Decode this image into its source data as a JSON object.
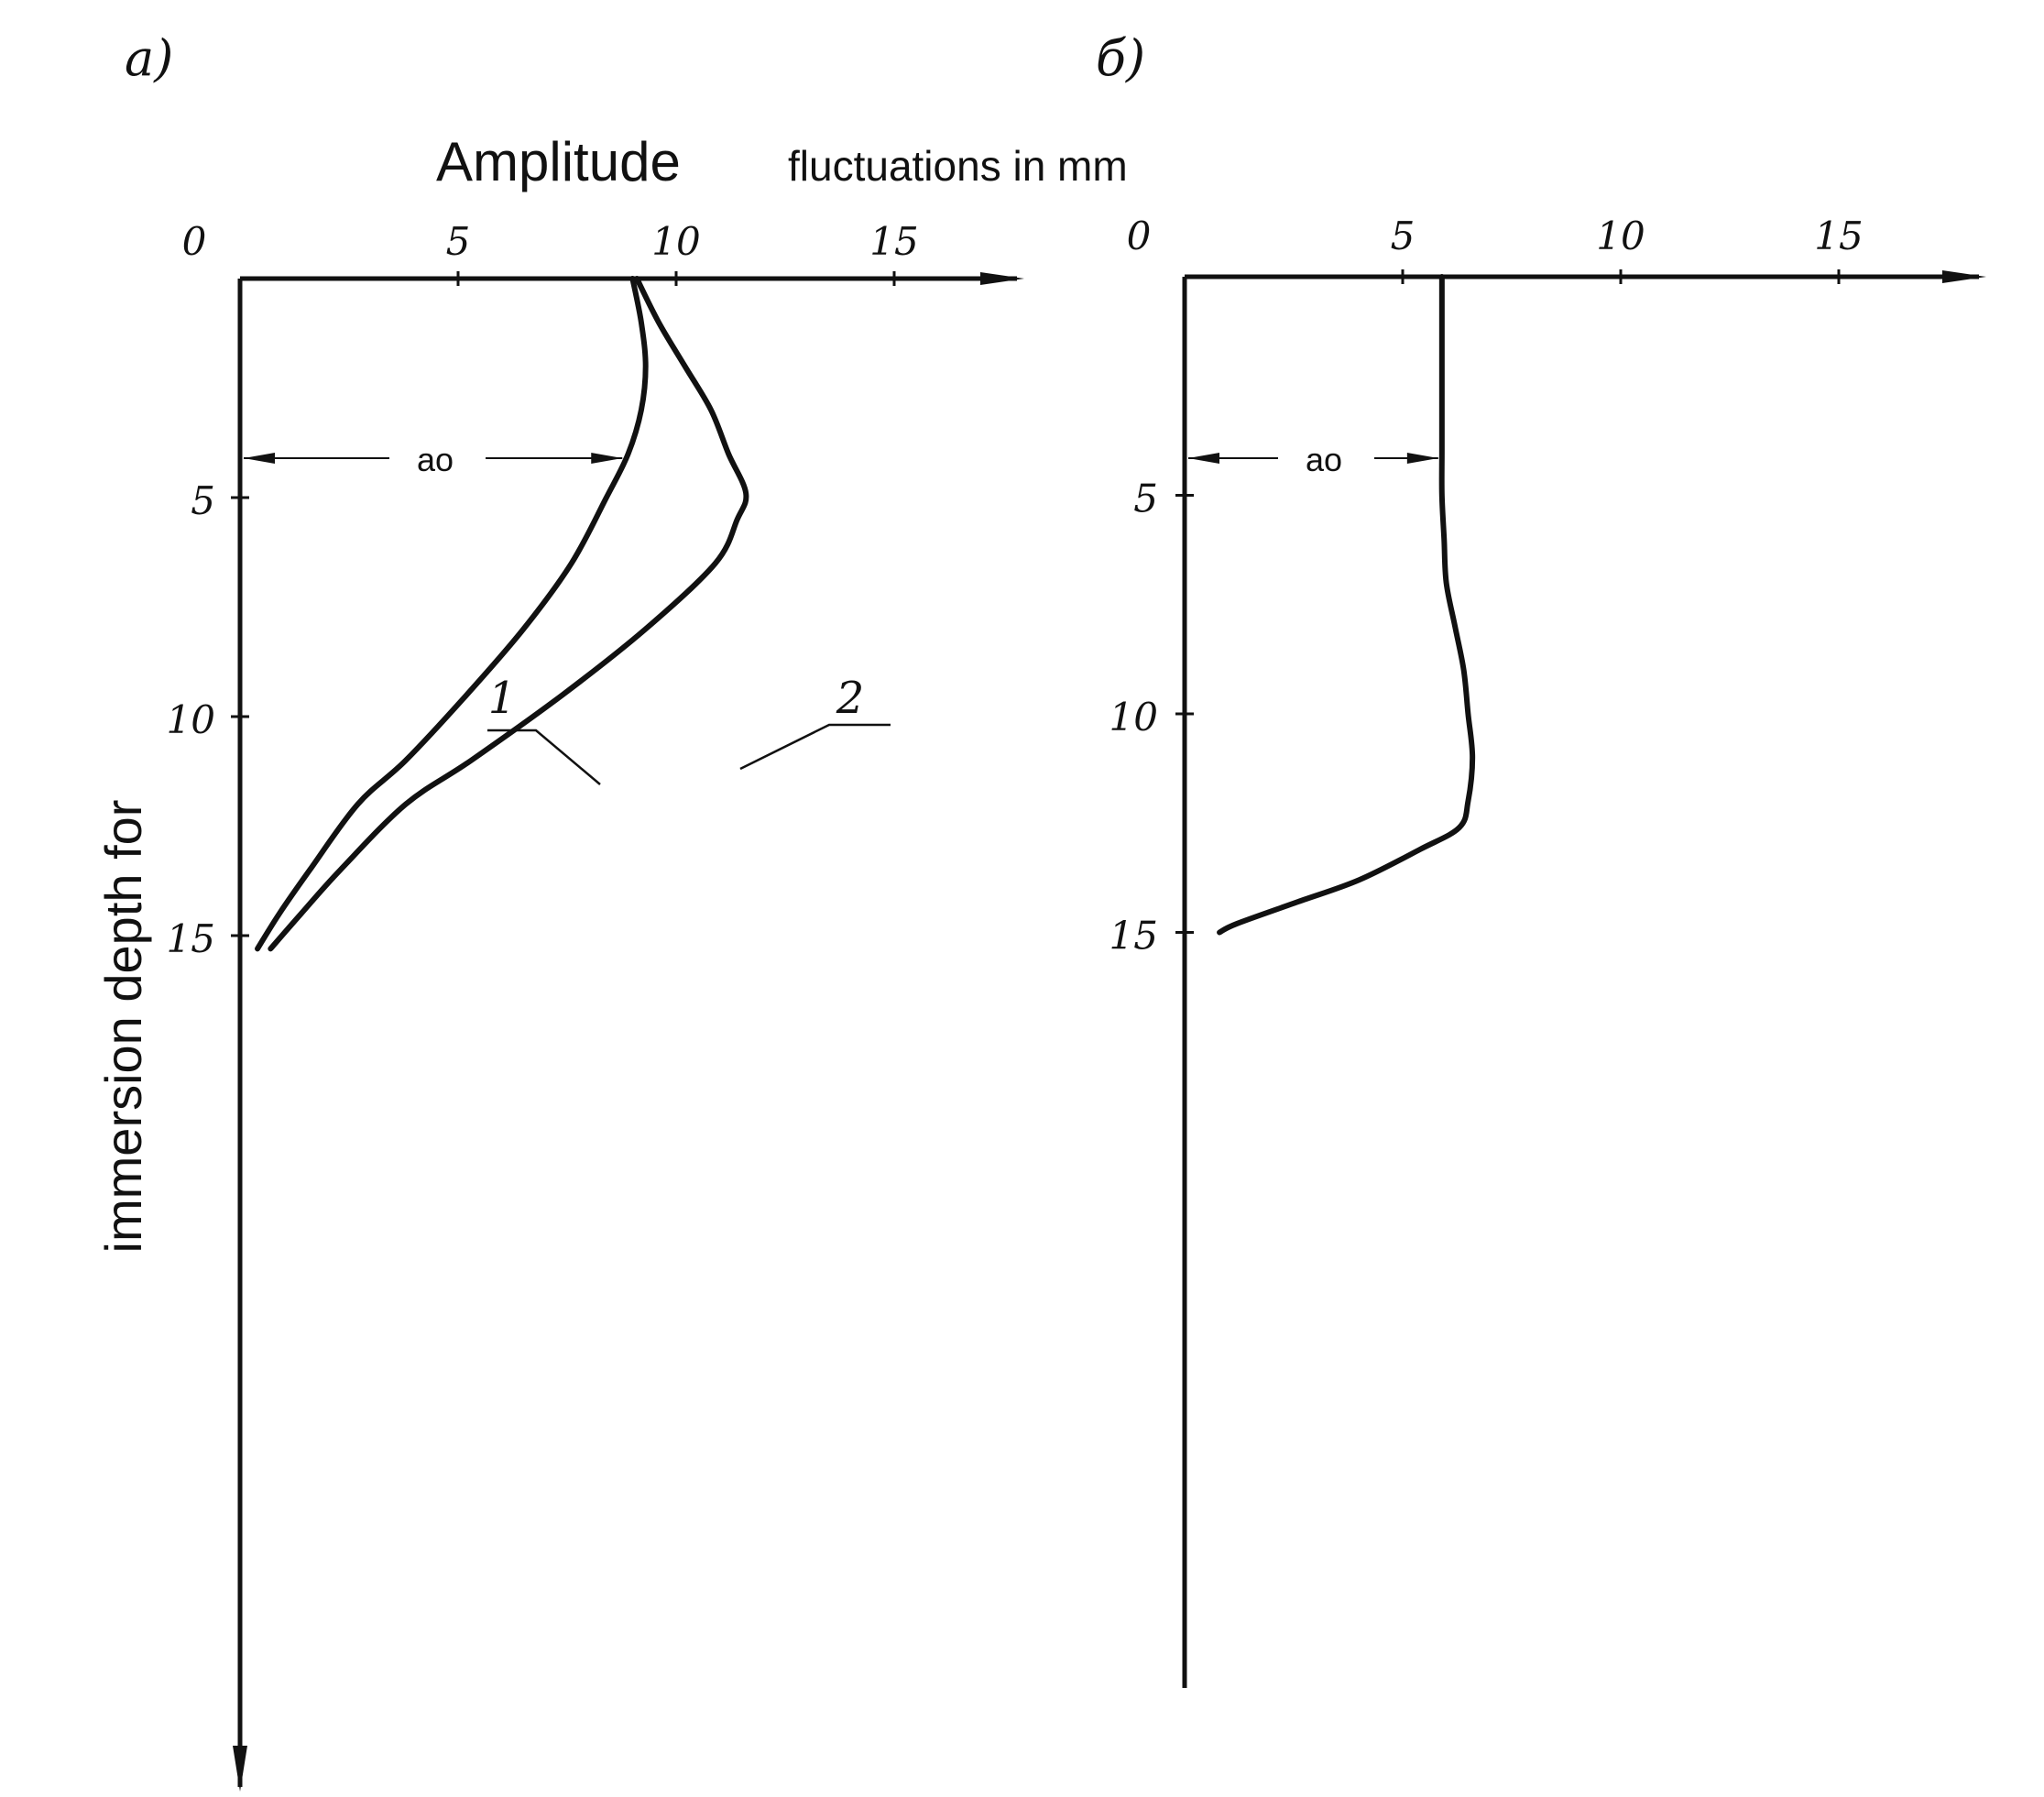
{
  "chart_data": [
    {
      "type": "line",
      "panel_label": "a)",
      "title": "Amplitude",
      "subtitle": "fluctuations in mm",
      "ylabel": "immersion depth for",
      "x_ticks": [
        "0",
        "5",
        "10",
        "15"
      ],
      "y_ticks": [
        "5",
        "10",
        "15"
      ],
      "xlim": [
        0,
        18
      ],
      "ylim": [
        0,
        17
      ],
      "y_direction": "down",
      "annotation": "ao",
      "series": [
        {
          "name": "1",
          "points": [
            [
              9.0,
              0
            ],
            [
              9.2,
              1
            ],
            [
              9.3,
              2
            ],
            [
              9.2,
              3
            ],
            [
              8.9,
              4
            ],
            [
              8.4,
              5
            ],
            [
              7.6,
              6.5
            ],
            [
              6.5,
              8
            ],
            [
              5.2,
              9.5
            ],
            [
              3.8,
              11
            ],
            [
              2.7,
              12
            ],
            [
              1.6,
              13.5
            ],
            [
              0.9,
              14.5
            ],
            [
              0.4,
              15.3
            ]
          ]
        },
        {
          "name": "2",
          "points": [
            [
              9.1,
              0
            ],
            [
              9.6,
              1
            ],
            [
              10.2,
              2
            ],
            [
              10.8,
              3
            ],
            [
              11.2,
              4
            ],
            [
              11.6,
              4.9
            ],
            [
              11.4,
              5.5
            ],
            [
              10.9,
              6.5
            ],
            [
              9.3,
              8
            ],
            [
              7.4,
              9.5
            ],
            [
              5.3,
              11
            ],
            [
              3.8,
              12
            ],
            [
              2.3,
              13.5
            ],
            [
              1.4,
              14.5
            ],
            [
              0.7,
              15.3
            ]
          ]
        }
      ]
    },
    {
      "type": "line",
      "panel_label": "б)",
      "x_ticks": [
        "0",
        "5",
        "10",
        "15"
      ],
      "y_ticks": [
        "5",
        "10",
        "15"
      ],
      "xlim": [
        0,
        18
      ],
      "ylim": [
        0,
        16
      ],
      "y_direction": "down",
      "annotation": "ao",
      "series": [
        {
          "points": [
            [
              5.9,
              0
            ],
            [
              5.9,
              1
            ],
            [
              5.9,
              2
            ],
            [
              5.9,
              3
            ],
            [
              5.9,
              4
            ],
            [
              5.9,
              5
            ],
            [
              5.95,
              6
            ],
            [
              6.0,
              7
            ],
            [
              6.2,
              8
            ],
            [
              6.4,
              9
            ],
            [
              6.5,
              10
            ],
            [
              6.6,
              11
            ],
            [
              6.5,
              12
            ],
            [
              6.3,
              12.6
            ],
            [
              5.4,
              13.1
            ],
            [
              4.0,
              13.8
            ],
            [
              2.6,
              14.3
            ],
            [
              1.2,
              14.8
            ],
            [
              0.8,
              15
            ]
          ]
        }
      ]
    }
  ]
}
